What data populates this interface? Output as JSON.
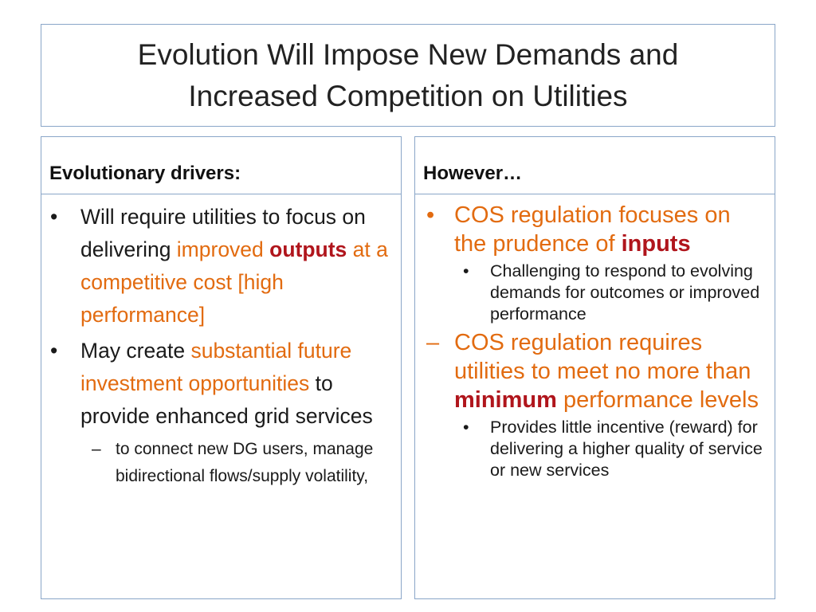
{
  "title": {
    "line1": "Evolution Will Impose New Demands and",
    "line2": "Increased Competition on Utilities"
  },
  "left": {
    "heading": "Evolutionary drivers:",
    "bullet1": {
      "t1": "Will require utilities to focus on delivering ",
      "t2": "improved ",
      "t3": "outputs",
      "t4": " at a competitive cost [high performance]"
    },
    "bullet2": {
      "t1": "May create ",
      "t2": "substantial future investment opportunities",
      "t3": " to provide enhanced grid services"
    },
    "sub1": "to connect new DG users, manage bidirectional flows/supply volatility,"
  },
  "right": {
    "heading": "However…",
    "bullet1": {
      "t1": "COS regulation focuses on the prudence of ",
      "t2": "inputs"
    },
    "sub1": "Challenging to respond to evolving demands for outcomes or improved performance",
    "bullet2": {
      "t1": "COS regulation requires utilities to meet no more than ",
      "t2": "minimum",
      "t3": " performance levels"
    },
    "sub2": "Provides little incentive (reward) for delivering a higher quality of service or new services"
  },
  "markers": {
    "bullet": "•",
    "dash": "–"
  },
  "colors": {
    "accent": "#e26b10",
    "emphasis": "#b0151c",
    "border": "#8aa6c8"
  }
}
